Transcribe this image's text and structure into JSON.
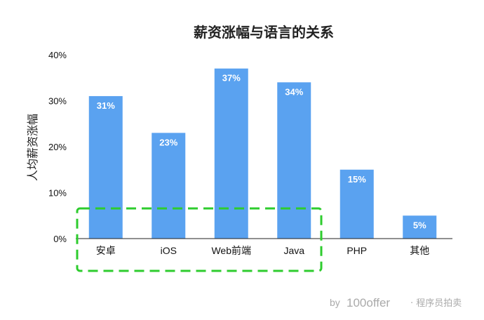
{
  "chart_data": {
    "type": "bar",
    "title": "薪资涨幅与语言的关系",
    "xlabel": "",
    "ylabel": "人均薪资涨幅",
    "categories": [
      "安卓",
      "iOS",
      "Web前端",
      "Java",
      "PHP",
      "其他"
    ],
    "values": [
      31,
      23,
      37,
      34,
      15,
      5
    ],
    "data_labels": [
      "31%",
      "23%",
      "37%",
      "34%",
      "15%",
      "5%"
    ],
    "ylim": [
      0,
      40
    ],
    "yticks": [
      0,
      10,
      20,
      30,
      40
    ],
    "ytick_labels": [
      "0%",
      "10%",
      "20%",
      "30%",
      "40%"
    ],
    "grid": false,
    "legend": "none",
    "bar_color": "#5aa2f0",
    "highlight": {
      "style": "dashed",
      "color": "#2ecc2e",
      "categories": [
        "安卓",
        "iOS",
        "Web前端",
        "Java"
      ]
    }
  },
  "watermark": {
    "by": "by",
    "brand": "100offer",
    "suffix": "· 程序员拍卖"
  }
}
